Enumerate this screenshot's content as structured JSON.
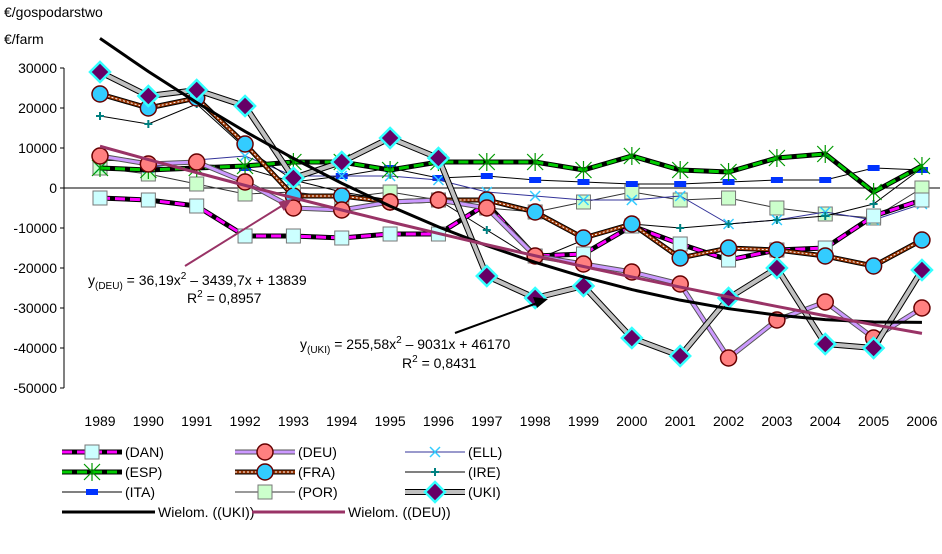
{
  "chart_data": {
    "type": "line",
    "y_axis_labels": [
      "€/gospodarstwo",
      "€/farm"
    ],
    "categories": [
      "1989",
      "1990",
      "1991",
      "1992",
      "1993",
      "1994",
      "1995",
      "1996",
      "1997",
      "1998",
      "1999",
      "2000",
      "2001",
      "2002",
      "2003",
      "2004",
      "2005",
      "2006"
    ],
    "ylim": [
      -50000,
      30000
    ],
    "yticks": [
      -50000,
      -40000,
      -30000,
      -20000,
      -10000,
      0,
      10000,
      20000,
      30000
    ],
    "series": [
      {
        "name": "(DAN)",
        "color": "#ff00ff",
        "marker_color": "#ccffff",
        "marker": "square",
        "style": "dashed",
        "values": [
          -2500,
          -3000,
          -4500,
          -12000,
          -12000,
          -12500,
          -11500,
          -11500,
          -4000,
          -17000,
          -16500,
          -9500,
          -14000,
          -18000,
          -15500,
          -15000,
          -7000,
          -3000
        ]
      },
      {
        "name": "(DEU)",
        "color": "#cc99ff",
        "marker_color": "#ff8080",
        "marker": "circle",
        "style": "double",
        "values": [
          8000,
          6000,
          6500,
          1500,
          -5000,
          -5500,
          -3500,
          -3000,
          -5000,
          -17000,
          -19000,
          -21000,
          -24000,
          -42500,
          -33000,
          -28500,
          -37500,
          -30000
        ]
      },
      {
        "name": "(ELL)",
        "color": "#333399",
        "marker_color": "#33ccff",
        "marker": "x",
        "style": "thin",
        "values": [
          5000,
          5000,
          7000,
          8000,
          3000,
          3000,
          3000,
          2000,
          -1000,
          -2000,
          -3000,
          -3000,
          -2000,
          -9000,
          -8000,
          -6000,
          -8000,
          -4000
        ]
      },
      {
        "name": "(ESP)",
        "color": "#00cc00",
        "marker_color": "#009900",
        "marker": "asterisk",
        "style": "dashed",
        "values": [
          5000,
          4500,
          5000,
          5500,
          6500,
          6500,
          4500,
          6500,
          6500,
          6500,
          4500,
          8000,
          4500,
          4000,
          7500,
          8500,
          -1000,
          5500
        ]
      },
      {
        "name": "(FRA)",
        "color": "#993300",
        "marker_color": "#33ccff",
        "marker": "circle",
        "style": "dotted",
        "values": [
          23500,
          20000,
          22500,
          11000,
          -2000,
          -2000,
          -3500,
          -3000,
          -3000,
          -6000,
          -12500,
          -9000,
          -17500,
          -15000,
          -15500,
          -17000,
          -19500,
          -13000
        ]
      },
      {
        "name": "(IRE)",
        "color": "#000000",
        "marker_color": "#008080",
        "marker": "plus",
        "style": "thin",
        "values": [
          18000,
          16000,
          21000,
          10000,
          2000,
          -1000,
          -3000,
          -3000,
          -10500,
          -18000,
          -13000,
          -9000,
          -10000,
          -9000,
          -8000,
          -7000,
          -4000,
          5000
        ]
      },
      {
        "name": "(ITA)",
        "color": "#000000",
        "marker_color": "#0033ff",
        "marker": "rect",
        "style": "thin",
        "values": [
          7000,
          6500,
          6000,
          5000,
          1500,
          3000,
          5000,
          2500,
          3000,
          2000,
          1500,
          1000,
          1000,
          1500,
          2000,
          2000,
          5000,
          4500
        ]
      },
      {
        "name": "(POR)",
        "color": "#333333",
        "marker_color": "#ccffcc",
        "marker": "square",
        "style": "thin",
        "values": [
          5000,
          3500,
          1000,
          -1500,
          -1000,
          -2500,
          -1000,
          -3000,
          -5000,
          -6000,
          -3500,
          -1000,
          -3000,
          -2500,
          -5000,
          -6500,
          -7500,
          0
        ]
      },
      {
        "name": "(UKI)",
        "color": "#c0c0c0",
        "marker_color": "#660066",
        "marker": "diamond",
        "style": "thick",
        "values": [
          29000,
          23000,
          24500,
          20500,
          2500,
          6500,
          12500,
          7500,
          -22000,
          -27500,
          -24500,
          -37500,
          -42000,
          -27500,
          -20000,
          -39000,
          -40000,
          -20500
        ]
      },
      {
        "name": "Wielom. ((UKI))",
        "color": "#000000",
        "marker": null,
        "style": "trend",
        "values": [
          37395,
          29130,
          21377,
          14135,
          7405,
          1185,
          -4524,
          -9721,
          -14407,
          -18582,
          -22246,
          -25399,
          -28040,
          -30170,
          -31790,
          -32898,
          -33494,
          -33580
        ]
      },
      {
        "name": "Wielom. ((DEU))",
        "color": "#993366",
        "marker": null,
        "style": "trend",
        "values": [
          10436,
          7104,
          3846,
          659,
          -2455,
          -5496,
          -8466,
          -11362,
          -14187,
          -16939,
          -19619,
          -22226,
          -24761,
          -27224,
          -29614,
          -31932,
          -34177,
          -36350
        ]
      }
    ],
    "annotations": [
      {
        "y": "y",
        "sub": "(DEU)",
        "eq": " = 36,19x",
        "sup": "2",
        "rest": " – 3439,7x + 13839",
        "r": "R",
        "r_sup": "2",
        "r_rest": " = 0,8957"
      },
      {
        "y": "y",
        "sub": "(UKI)",
        "eq": " = 255,58x",
        "sup": "2",
        "rest": " – 9031x + 46170",
        "r": "R",
        "r_sup": "2",
        "r_rest": " = 0,8431"
      }
    ]
  }
}
